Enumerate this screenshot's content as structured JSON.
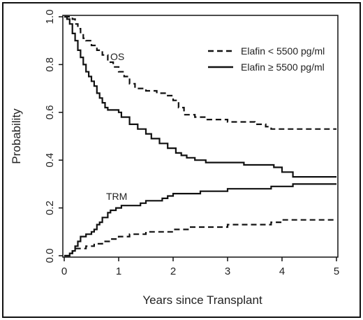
{
  "chart_data": {
    "type": "line",
    "step": true,
    "title": "",
    "xlabel": "Years since Transplant",
    "ylabel": "Probability",
    "xlim": [
      0,
      5
    ],
    "ylim": [
      0,
      1
    ],
    "x_ticks": [
      "0",
      "1",
      "2",
      "3",
      "4",
      "5"
    ],
    "y_ticks": [
      "0.0",
      "0.2",
      "0.4",
      "0.6",
      "0.8",
      "1.0"
    ],
    "legend_position": "top-right",
    "legend": [
      {
        "label": "Elafin < 5500 pg/ml",
        "style": "dashed"
      },
      {
        "label": "Elafin ≥ 5500 pg/ml",
        "style": "solid"
      }
    ],
    "annotations": [
      "OS",
      "TRM"
    ],
    "series": [
      {
        "group": "Elafin < 5500 pg/ml",
        "outcome": "OS",
        "style": "dashed",
        "x": [
          0,
          0.1,
          0.15,
          0.2,
          0.25,
          0.3,
          0.35,
          0.4,
          0.5,
          0.6,
          0.7,
          0.8,
          0.9,
          1.0,
          1.1,
          1.2,
          1.3,
          1.5,
          1.7,
          1.9,
          2.0,
          2.1,
          2.2,
          2.4,
          2.6,
          2.8,
          3.0,
          3.2,
          3.5,
          3.7,
          3.8,
          4.0,
          4.2,
          4.4,
          5.0
        ],
        "values": [
          1.0,
          1.0,
          0.99,
          0.97,
          0.95,
          0.93,
          0.91,
          0.9,
          0.88,
          0.86,
          0.84,
          0.81,
          0.79,
          0.77,
          0.75,
          0.72,
          0.7,
          0.69,
          0.68,
          0.67,
          0.65,
          0.62,
          0.59,
          0.58,
          0.57,
          0.57,
          0.56,
          0.56,
          0.55,
          0.54,
          0.53,
          0.53,
          0.53,
          0.53,
          0.53
        ]
      },
      {
        "group": "Elafin ≥ 5500 pg/ml",
        "outcome": "OS",
        "style": "solid",
        "x": [
          0,
          0.05,
          0.1,
          0.15,
          0.2,
          0.25,
          0.3,
          0.35,
          0.4,
          0.45,
          0.5,
          0.55,
          0.6,
          0.65,
          0.7,
          0.75,
          0.8,
          1.0,
          1.05,
          1.2,
          1.35,
          1.5,
          1.6,
          1.75,
          1.9,
          2.05,
          2.15,
          2.25,
          2.4,
          2.6,
          2.8,
          3.0,
          3.3,
          3.7,
          3.85,
          4.0,
          4.2,
          5.0
        ],
        "values": [
          1.0,
          0.99,
          0.97,
          0.93,
          0.9,
          0.86,
          0.83,
          0.8,
          0.77,
          0.75,
          0.73,
          0.71,
          0.68,
          0.66,
          0.64,
          0.62,
          0.61,
          0.6,
          0.58,
          0.55,
          0.53,
          0.51,
          0.49,
          0.47,
          0.45,
          0.43,
          0.42,
          0.41,
          0.4,
          0.39,
          0.39,
          0.39,
          0.38,
          0.38,
          0.37,
          0.35,
          0.33,
          0.33
        ]
      },
      {
        "group": "Elafin ≥ 5500 pg/ml",
        "outcome": "TRM",
        "style": "solid",
        "x": [
          0,
          0.05,
          0.1,
          0.15,
          0.2,
          0.25,
          0.3,
          0.4,
          0.5,
          0.55,
          0.6,
          0.65,
          0.7,
          0.8,
          0.85,
          0.95,
          1.05,
          1.2,
          1.4,
          1.5,
          1.7,
          1.8,
          1.9,
          2.0,
          2.2,
          2.5,
          3.0,
          3.5,
          3.8,
          4.0,
          4.2,
          5.0
        ],
        "values": [
          0.0,
          0.0,
          0.01,
          0.02,
          0.04,
          0.06,
          0.08,
          0.09,
          0.1,
          0.11,
          0.13,
          0.14,
          0.16,
          0.18,
          0.19,
          0.2,
          0.21,
          0.21,
          0.22,
          0.23,
          0.23,
          0.24,
          0.25,
          0.26,
          0.26,
          0.27,
          0.28,
          0.28,
          0.29,
          0.29,
          0.3,
          0.3
        ]
      },
      {
        "group": "Elafin < 5500 pg/ml",
        "outcome": "TRM",
        "style": "dashed",
        "x": [
          0,
          0.05,
          0.1,
          0.15,
          0.2,
          0.3,
          0.4,
          0.55,
          0.7,
          0.85,
          1.0,
          1.2,
          1.5,
          1.8,
          2.0,
          2.3,
          2.6,
          3.0,
          3.3,
          3.8,
          4.0,
          4.2,
          5.0
        ],
        "values": [
          0.0,
          0.0,
          0.01,
          0.02,
          0.03,
          0.03,
          0.04,
          0.05,
          0.06,
          0.07,
          0.08,
          0.09,
          0.1,
          0.1,
          0.11,
          0.12,
          0.12,
          0.13,
          0.13,
          0.14,
          0.15,
          0.15,
          0.15
        ]
      }
    ]
  }
}
